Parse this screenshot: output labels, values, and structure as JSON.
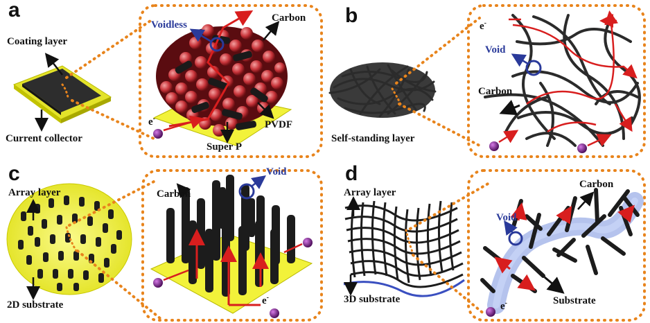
{
  "panels": {
    "a": {
      "letter": "a",
      "coating_layer": "Coating layer",
      "current_collector": "Current collector",
      "voidless": "Voidless",
      "carbon": "Carbon",
      "electron": "e",
      "electron_sup": "-",
      "super_p": "Super P",
      "pvdf": "PVDF"
    },
    "b": {
      "letter": "b",
      "self_standing": "Self-standing layer",
      "electron": "e",
      "electron_sup": "-",
      "void": "Void",
      "carbon": "Carbon"
    },
    "c": {
      "letter": "c",
      "array_layer": "Array layer",
      "substrate_2d": "2D substrate",
      "carbon": "Carbon",
      "void": "Void",
      "electron": "e",
      "electron_sup": "-"
    },
    "d": {
      "letter": "d",
      "array_layer": "Array layer",
      "substrate_3d": "3D substrate",
      "carbon": "Carbon",
      "void": "Void",
      "electron": "e",
      "electron_sup": "-",
      "substrate": "Substrate"
    }
  },
  "colors": {
    "dotted_border": "#e8841c",
    "yellow_substrate": "#f2f23a",
    "carbon_black": "#1a1a1a",
    "red_path": "#d81e1e",
    "blue_label": "#2a3a9a",
    "purple_electron": "#7a1f8a"
  }
}
